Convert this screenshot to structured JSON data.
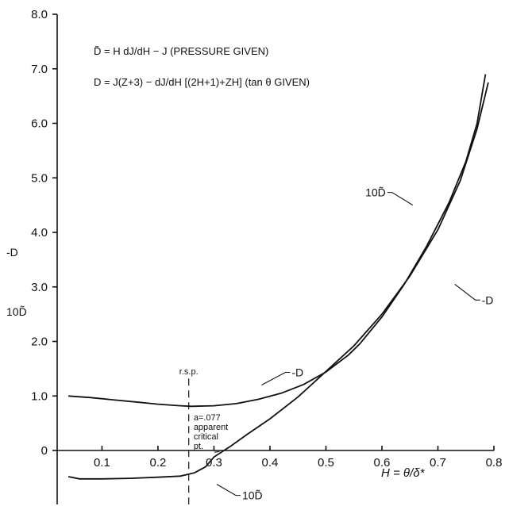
{
  "chart_data": {
    "type": "line",
    "equations": [
      "D̃ = H dJ/dH − J   (PRESSURE GIVEN)",
      "D = J(Z+3) − dJ/dH [(2H+1)+ZH]   (tan θ GIVEN)"
    ],
    "xlabel": "H = θ/δ*",
    "ylabel_lines": [
      "-D",
      "10D̃"
    ],
    "xlim": [
      0.02,
      0.8
    ],
    "ylim": [
      -0.8,
      8.0
    ],
    "xticks": [
      {
        "value": 0.1,
        "label": "0.1"
      },
      {
        "value": 0.2,
        "label": "0.2"
      },
      {
        "value": 0.3,
        "label": "0.3"
      },
      {
        "value": 0.4,
        "label": "0.4"
      },
      {
        "value": 0.5,
        "label": "0.5"
      },
      {
        "value": 0.6,
        "label": "0.6"
      },
      {
        "value": 0.7,
        "label": "0.7"
      },
      {
        "value": 0.8,
        "label": "0.8"
      }
    ],
    "yticks": [
      {
        "value": 0,
        "label": "0"
      },
      {
        "value": 1,
        "label": "1.0"
      },
      {
        "value": 2,
        "label": "2.0"
      },
      {
        "value": 3,
        "label": "3.0"
      },
      {
        "value": 4,
        "label": "4.0"
      },
      {
        "value": 5,
        "label": "5.0"
      },
      {
        "value": 6,
        "label": "6.0"
      },
      {
        "value": 7,
        "label": "7.0"
      },
      {
        "value": 8,
        "label": "8.0"
      }
    ],
    "series": [
      {
        "name": "-D",
        "points": [
          [
            0.04,
            1.0
          ],
          [
            0.08,
            0.97
          ],
          [
            0.12,
            0.93
          ],
          [
            0.16,
            0.89
          ],
          [
            0.2,
            0.85
          ],
          [
            0.24,
            0.82
          ],
          [
            0.26,
            0.81
          ],
          [
            0.3,
            0.82
          ],
          [
            0.34,
            0.86
          ],
          [
            0.38,
            0.94
          ],
          [
            0.42,
            1.05
          ],
          [
            0.46,
            1.21
          ],
          [
            0.5,
            1.44
          ],
          [
            0.54,
            1.75
          ],
          [
            0.56,
            1.95
          ],
          [
            0.6,
            2.45
          ],
          [
            0.64,
            3.05
          ],
          [
            0.68,
            3.75
          ],
          [
            0.72,
            4.55
          ],
          [
            0.75,
            5.3
          ],
          [
            0.77,
            6.0
          ],
          [
            0.785,
            6.9
          ]
        ]
      },
      {
        "name": "10D̃",
        "branches": [
          [
            [
              0.04,
              -0.48
            ],
            [
              0.06,
              -0.52
            ],
            [
              0.1,
              -0.52
            ],
            [
              0.15,
              -0.51
            ],
            [
              0.2,
              -0.49
            ],
            [
              0.24,
              -0.47
            ],
            [
              0.265,
              -0.41
            ],
            [
              0.285,
              -0.3
            ],
            [
              0.3,
              -0.12
            ],
            [
              0.315,
              -0.02
            ]
          ],
          [
            [
              0.315,
              -0.02
            ],
            [
              0.33,
              0.08
            ],
            [
              0.36,
              0.3
            ],
            [
              0.4,
              0.58
            ],
            [
              0.45,
              0.98
            ],
            [
              0.5,
              1.45
            ],
            [
              0.55,
              1.92
            ],
            [
              0.6,
              2.5
            ],
            [
              0.65,
              3.2
            ],
            [
              0.7,
              4.05
            ],
            [
              0.74,
              4.95
            ],
            [
              0.77,
              5.9
            ],
            [
              0.79,
              6.75
            ]
          ]
        ]
      }
    ],
    "curve_labels": [
      {
        "text": "-D",
        "x": 0.385,
        "y": 1.2
      },
      {
        "text": "-D",
        "x": 0.73,
        "y": 3.05
      },
      {
        "text": "10D̃",
        "x": 0.655,
        "y": 4.5
      },
      {
        "text": "10D̃",
        "x": 0.305,
        "y": -0.62
      }
    ],
    "annotations": [
      {
        "text": "r.s.p.",
        "x": 0.255,
        "y": 1.4
      },
      {
        "lines": [
          "a=.077",
          "apparent",
          "critical",
          "pt."
        ],
        "x": 0.258,
        "y": 0.55
      }
    ],
    "reference_lines": [
      {
        "orientation": "vertical",
        "x": 0.255,
        "style": "dashed"
      }
    ]
  }
}
